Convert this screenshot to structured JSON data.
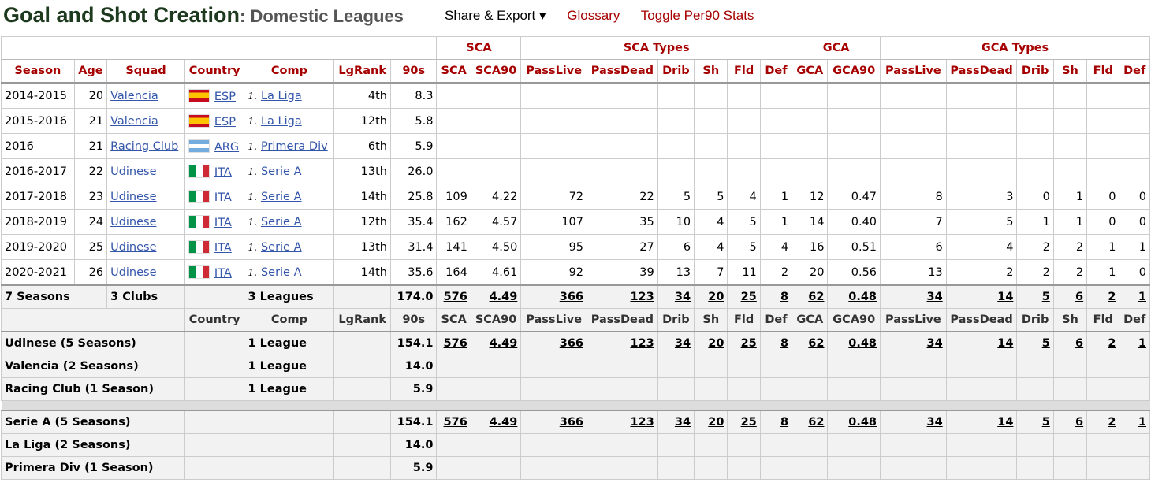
{
  "header": {
    "title": "Goal and Shot Creation",
    "subtitle": ": Domestic Leagues",
    "links": [
      "Share & Export ▾",
      "Glossary",
      "Toggle Per90 Stats"
    ]
  },
  "over_headers": [
    "SCA",
    "SCA Types",
    "GCA",
    "GCA Types"
  ],
  "columns": [
    "Season",
    "Age",
    "Squad",
    "Country",
    "Comp",
    "LgRank",
    "90s",
    "SCA",
    "SCA90",
    "PassLive",
    "PassDead",
    "Drib",
    "Sh",
    "Fld",
    "Def",
    "GCA",
    "GCA90",
    "PassLive",
    "PassDead",
    "Drib",
    "Sh",
    "Fld",
    "Def"
  ],
  "rows": [
    {
      "season": "2014-2015",
      "age": "20",
      "squad": "Valencia",
      "flag": "esp",
      "country": "ESP",
      "rank": "1.",
      "comp": "La Liga",
      "lgrank": "4th",
      "n90": "8.3",
      "stats": [
        "",
        "",
        "",
        "",
        "",
        "",
        "",
        "",
        "",
        "",
        "",
        "",
        "",
        "",
        "",
        ""
      ]
    },
    {
      "season": "2015-2016",
      "age": "21",
      "squad": "Valencia",
      "flag": "esp",
      "country": "ESP",
      "rank": "1.",
      "comp": "La Liga",
      "lgrank": "12th",
      "n90": "5.8",
      "stats": [
        "",
        "",
        "",
        "",
        "",
        "",
        "",
        "",
        "",
        "",
        "",
        "",
        "",
        "",
        "",
        ""
      ]
    },
    {
      "season": "2016",
      "age": "21",
      "squad": "Racing Club",
      "flag": "arg",
      "country": "ARG",
      "rank": "1.",
      "comp": "Primera Div",
      "lgrank": "6th",
      "n90": "5.9",
      "stats": [
        "",
        "",
        "",
        "",
        "",
        "",
        "",
        "",
        "",
        "",
        "",
        "",
        "",
        "",
        "",
        ""
      ]
    },
    {
      "season": "2016-2017",
      "age": "22",
      "squad": "Udinese",
      "flag": "ita",
      "country": "ITA",
      "rank": "1.",
      "comp": "Serie A",
      "lgrank": "13th",
      "n90": "26.0",
      "stats": [
        "",
        "",
        "",
        "",
        "",
        "",
        "",
        "",
        "",
        "",
        "",
        "",
        "",
        "",
        "",
        ""
      ]
    },
    {
      "season": "2017-2018",
      "age": "23",
      "squad": "Udinese",
      "flag": "ita",
      "country": "ITA",
      "rank": "1.",
      "comp": "Serie A",
      "lgrank": "14th",
      "n90": "25.8",
      "stats": [
        "109",
        "4.22",
        "72",
        "22",
        "5",
        "5",
        "4",
        "1",
        "12",
        "0.47",
        "8",
        "3",
        "0",
        "1",
        "0",
        "0"
      ]
    },
    {
      "season": "2018-2019",
      "age": "24",
      "squad": "Udinese",
      "flag": "ita",
      "country": "ITA",
      "rank": "1.",
      "comp": "Serie A",
      "lgrank": "12th",
      "n90": "35.4",
      "stats": [
        "162",
        "4.57",
        "107",
        "35",
        "10",
        "4",
        "5",
        "1",
        "14",
        "0.40",
        "7",
        "5",
        "1",
        "1",
        "0",
        "0"
      ]
    },
    {
      "season": "2019-2020",
      "age": "25",
      "squad": "Udinese",
      "flag": "ita",
      "country": "ITA",
      "rank": "1.",
      "comp": "Serie A",
      "lgrank": "13th",
      "n90": "31.4",
      "stats": [
        "141",
        "4.50",
        "95",
        "27",
        "6",
        "4",
        "5",
        "4",
        "16",
        "0.51",
        "6",
        "4",
        "2",
        "2",
        "1",
        "1"
      ]
    },
    {
      "season": "2020-2021",
      "age": "26",
      "squad": "Udinese",
      "flag": "ita",
      "country": "ITA",
      "rank": "1.",
      "comp": "Serie A",
      "lgrank": "14th",
      "n90": "35.6",
      "stats": [
        "164",
        "4.61",
        "92",
        "39",
        "13",
        "7",
        "11",
        "2",
        "20",
        "0.56",
        "13",
        "2",
        "2",
        "2",
        "1",
        "0"
      ]
    }
  ],
  "totals": {
    "seasons": "7 Seasons",
    "clubs": "3 Clubs",
    "leagues": "3 Leagues",
    "n90": "174.0",
    "stats": [
      "576",
      "4.49",
      "366",
      "123",
      "34",
      "20",
      "25",
      "8",
      "62",
      "0.48",
      "34",
      "14",
      "5",
      "6",
      "2",
      "1"
    ]
  },
  "sub_columns": [
    "Country",
    "Comp",
    "LgRank",
    "90s",
    "SCA",
    "SCA90",
    "PassLive",
    "PassDead",
    "Drib",
    "Sh",
    "Fld",
    "Def",
    "GCA",
    "GCA90",
    "PassLive",
    "PassDead",
    "Drib",
    "Sh",
    "Fld",
    "Def"
  ],
  "club_rows": [
    {
      "label": "Udinese (5 Seasons)",
      "comp": "1 League",
      "n90": "154.1",
      "stats": [
        "576",
        "4.49",
        "366",
        "123",
        "34",
        "20",
        "25",
        "8",
        "62",
        "0.48",
        "34",
        "14",
        "5",
        "6",
        "2",
        "1"
      ]
    },
    {
      "label": "Valencia (2 Seasons)",
      "comp": "1 League",
      "n90": "14.0",
      "stats": [
        "",
        "",
        "",
        "",
        "",
        "",
        "",
        "",
        "",
        "",
        "",
        "",
        "",
        "",
        "",
        ""
      ]
    },
    {
      "label": "Racing Club (1 Season)",
      "comp": "1 League",
      "n90": "5.9",
      "stats": [
        "",
        "",
        "",
        "",
        "",
        "",
        "",
        "",
        "",
        "",
        "",
        "",
        "",
        "",
        "",
        ""
      ]
    }
  ],
  "league_rows": [
    {
      "label": "Serie A (5 Seasons)",
      "comp": "",
      "n90": "154.1",
      "stats": [
        "576",
        "4.49",
        "366",
        "123",
        "34",
        "20",
        "25",
        "8",
        "62",
        "0.48",
        "34",
        "14",
        "5",
        "6",
        "2",
        "1"
      ]
    },
    {
      "label": "La Liga (2 Seasons)",
      "comp": "",
      "n90": "14.0",
      "stats": [
        "",
        "",
        "",
        "",
        "",
        "",
        "",
        "",
        "",
        "",
        "",
        "",
        "",
        "",
        "",
        ""
      ]
    },
    {
      "label": "Primera Div (1 Season)",
      "comp": "",
      "n90": "5.9",
      "stats": [
        "",
        "",
        "",
        "",
        "",
        "",
        "",
        "",
        "",
        "",
        "",
        "",
        "",
        "",
        "",
        ""
      ]
    }
  ]
}
